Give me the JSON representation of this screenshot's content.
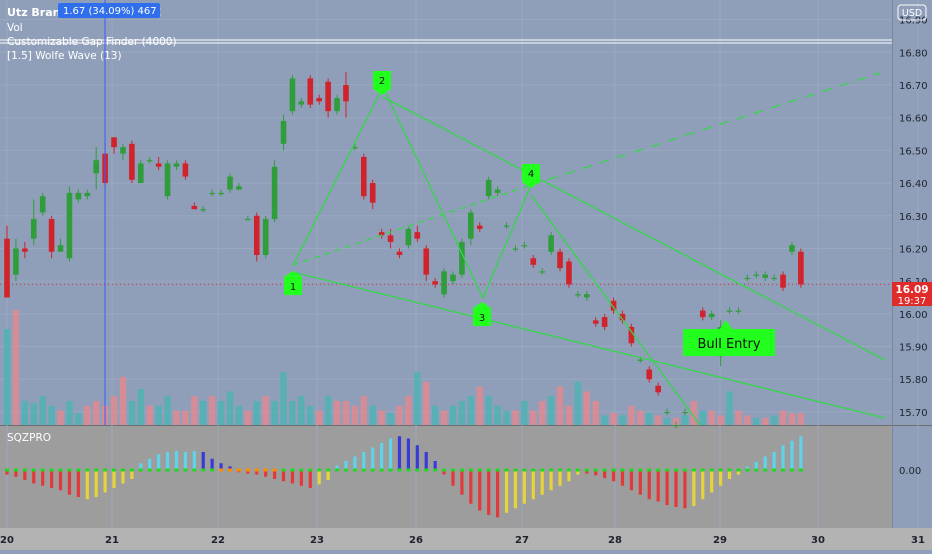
{
  "header": {
    "symbol": "Utz Brands Inc, 30, NYSE",
    "tooltip": "1.67 (34.09%) 467",
    "indicators": [
      "Vol",
      "Customizable Gap Finder (4000)",
      "[1.5] Wolfe Wave (13)"
    ]
  },
  "currency": "USD",
  "price_badge": {
    "price": "16.09",
    "timer": "19:37"
  },
  "markers": {
    "p1": "1",
    "p2": "2",
    "p3": "3",
    "p4": "4"
  },
  "entry_label": "Bull Entry",
  "sub_panel": {
    "title": "SQZPRO",
    "zero_label": "0.00"
  },
  "colors": {
    "up": "#2f9e3a",
    "down": "#d0232b",
    "vol_up": "#4fb3b3",
    "vol_down": "#e08a8f",
    "wolfe_line": "#35d64a",
    "marker": "#22ff1e",
    "badge": "#e02b2b",
    "tooltip": "#2f6fed",
    "sqz_cyan": "#5fd3e8",
    "sqz_blue": "#3a3ad6",
    "sqz_red": "#e23a3a",
    "sqz_yellow": "#e6d43a",
    "sqz_dot_green": "#21d821",
    "sqz_dot_orange": "#ff8a00"
  },
  "chart_data": {
    "type": "candlestick",
    "ylim": [
      15.66,
      16.96
    ],
    "y_ticks": [
      "16.90",
      "16.80",
      "16.70",
      "16.60",
      "16.50",
      "16.40",
      "16.30",
      "16.20",
      "16.10",
      "16.00",
      "15.90",
      "15.80",
      "15.70"
    ],
    "x_ticks": [
      "20",
      "21",
      "22",
      "23",
      "26",
      "27",
      "28",
      "29",
      "30",
      "31"
    ],
    "candles": [
      [
        16.23,
        16.05,
        16.27,
        16.05
      ],
      [
        16.12,
        16.2,
        16.23,
        16.1
      ],
      [
        16.2,
        16.19,
        16.22,
        16.17
      ],
      [
        16.23,
        16.29,
        16.35,
        16.21
      ],
      [
        16.31,
        16.36,
        16.37,
        16.3
      ],
      [
        16.29,
        16.19,
        16.3,
        16.17
      ],
      [
        16.19,
        16.21,
        16.23,
        16.19
      ],
      [
        16.17,
        16.37,
        16.39,
        16.16
      ],
      [
        16.35,
        16.37,
        16.38,
        16.34
      ],
      [
        16.36,
        16.37,
        16.38,
        16.35
      ],
      [
        16.43,
        16.47,
        16.51,
        16.38
      ],
      [
        16.49,
        16.4,
        16.52,
        16.39
      ],
      [
        16.54,
        16.51,
        16.53,
        16.49
      ],
      [
        16.49,
        16.51,
        16.52,
        16.47
      ],
      [
        16.52,
        16.41,
        16.53,
        16.4
      ],
      [
        16.4,
        16.46,
        16.47,
        16.4
      ],
      [
        16.47,
        16.47,
        16.48,
        16.46
      ],
      [
        16.46,
        16.45,
        16.48,
        16.44
      ],
      [
        16.36,
        16.46,
        16.47,
        16.35
      ],
      [
        16.45,
        16.46,
        16.47,
        16.44
      ],
      [
        16.46,
        16.42,
        16.47,
        16.41
      ],
      [
        16.33,
        16.32,
        16.34,
        16.32
      ],
      [
        16.32,
        16.32,
        16.33,
        16.31
      ],
      [
        16.37,
        16.37,
        16.38,
        16.36
      ],
      [
        16.37,
        16.37,
        16.38,
        16.36
      ],
      [
        16.38,
        16.42,
        16.43,
        16.37
      ],
      [
        16.38,
        16.39,
        16.4,
        16.38
      ],
      [
        16.29,
        16.29,
        16.3,
        16.29
      ],
      [
        16.3,
        16.18,
        16.31,
        16.16
      ],
      [
        16.18,
        16.29,
        16.3,
        16.17
      ],
      [
        16.29,
        16.45,
        16.47,
        16.28
      ],
      [
        16.52,
        16.59,
        16.61,
        16.5
      ],
      [
        16.62,
        16.72,
        16.73,
        16.61
      ],
      [
        16.64,
        16.65,
        16.66,
        16.63
      ],
      [
        16.72,
        16.64,
        16.73,
        16.63
      ],
      [
        16.66,
        16.65,
        16.67,
        16.64
      ],
      [
        16.71,
        16.62,
        16.72,
        16.6
      ],
      [
        16.62,
        16.66,
        16.67,
        16.61
      ],
      [
        16.7,
        16.65,
        16.74,
        16.6
      ],
      [
        16.51,
        16.51,
        16.52,
        16.5
      ],
      [
        16.48,
        16.36,
        16.49,
        16.35
      ],
      [
        16.4,
        16.34,
        16.41,
        16.32
      ],
      [
        16.25,
        16.24,
        16.26,
        16.23
      ],
      [
        16.24,
        16.22,
        16.26,
        16.2
      ],
      [
        16.19,
        16.18,
        16.2,
        16.17
      ],
      [
        16.21,
        16.26,
        16.27,
        16.2
      ],
      [
        16.25,
        16.23,
        16.27,
        16.22
      ],
      [
        16.2,
        16.12,
        16.21,
        16.1
      ],
      [
        16.1,
        16.09,
        16.11,
        16.08
      ],
      [
        16.06,
        16.13,
        16.14,
        16.05
      ],
      [
        16.1,
        16.12,
        16.13,
        16.09
      ],
      [
        16.12,
        16.22,
        16.23,
        16.11
      ],
      [
        16.23,
        16.31,
        16.32,
        16.21
      ],
      [
        16.27,
        16.26,
        16.28,
        16.25
      ],
      [
        16.36,
        16.41,
        16.42,
        16.35
      ],
      [
        16.37,
        16.38,
        16.39,
        16.36
      ],
      [
        16.27,
        16.27,
        16.28,
        16.26
      ],
      [
        16.2,
        16.2,
        16.21,
        16.19
      ],
      [
        16.21,
        16.21,
        16.22,
        16.2
      ],
      [
        16.17,
        16.15,
        16.18,
        16.14
      ],
      [
        16.13,
        16.13,
        16.14,
        16.12
      ],
      [
        16.19,
        16.24,
        16.25,
        16.18
      ],
      [
        16.19,
        16.14,
        16.2,
        16.13
      ],
      [
        16.16,
        16.09,
        16.17,
        16.08
      ],
      [
        16.06,
        16.06,
        16.07,
        16.05
      ],
      [
        16.05,
        16.06,
        16.07,
        16.04
      ],
      [
        15.98,
        15.97,
        15.99,
        15.96
      ],
      [
        15.99,
        15.96,
        16.0,
        15.95
      ],
      [
        16.04,
        16.01,
        16.05,
        16.0
      ],
      [
        16.0,
        15.98,
        16.01,
        15.97
      ],
      [
        15.96,
        15.91,
        15.97,
        15.9
      ],
      [
        15.86,
        15.86,
        15.87,
        15.85
      ],
      [
        15.83,
        15.8,
        15.84,
        15.79
      ],
      [
        15.78,
        15.76,
        15.79,
        15.75
      ],
      [
        15.7,
        15.7,
        15.71,
        15.69
      ],
      [
        15.66,
        15.66,
        15.67,
        15.65
      ],
      [
        15.7,
        15.7,
        15.71,
        15.69
      ],
      [
        15.92,
        15.92,
        15.93,
        15.91
      ],
      [
        16.01,
        15.99,
        16.02,
        15.98
      ],
      [
        15.99,
        16.0,
        16.01,
        15.98
      ],
      [
        15.87,
        15.96,
        15.98,
        15.84
      ],
      [
        16.01,
        16.01,
        16.02,
        16.0
      ],
      [
        16.01,
        16.01,
        16.02,
        16.0
      ],
      [
        16.11,
        16.11,
        16.12,
        16.1
      ],
      [
        16.12,
        16.12,
        16.13,
        16.11
      ],
      [
        16.11,
        16.12,
        16.13,
        16.1
      ],
      [
        16.11,
        16.11,
        16.12,
        16.1
      ],
      [
        16.12,
        16.08,
        16.13,
        16.07
      ],
      [
        16.19,
        16.21,
        16.22,
        16.18
      ],
      [
        16.19,
        16.09,
        16.2,
        16.08
      ]
    ],
    "volume": [
      [
        0.4,
        1
      ],
      [
        0.48,
        0
      ],
      [
        0.1,
        1
      ],
      [
        0.09,
        1
      ],
      [
        0.12,
        1
      ],
      [
        0.08,
        1
      ],
      [
        0.06,
        0
      ],
      [
        0.1,
        1
      ],
      [
        0.05,
        1
      ],
      [
        0.08,
        0
      ],
      [
        0.1,
        0
      ],
      [
        0.08,
        0
      ],
      [
        0.12,
        0
      ],
      [
        0.2,
        0
      ],
      [
        0.1,
        1
      ],
      [
        0.15,
        1
      ],
      [
        0.08,
        0
      ],
      [
        0.08,
        1
      ],
      [
        0.12,
        1
      ],
      [
        0.06,
        0
      ],
      [
        0.06,
        0
      ],
      [
        0.12,
        0
      ],
      [
        0.1,
        1
      ],
      [
        0.12,
        0
      ],
      [
        0.1,
        1
      ],
      [
        0.14,
        1
      ],
      [
        0.08,
        1
      ],
      [
        0.06,
        0
      ],
      [
        0.1,
        1
      ],
      [
        0.12,
        0
      ],
      [
        0.1,
        1
      ],
      [
        0.22,
        1
      ],
      [
        0.1,
        1
      ],
      [
        0.12,
        1
      ],
      [
        0.08,
        1
      ],
      [
        0.06,
        0
      ],
      [
        0.12,
        1
      ],
      [
        0.1,
        0
      ],
      [
        0.1,
        0
      ],
      [
        0.08,
        0
      ],
      [
        0.12,
        0
      ],
      [
        0.08,
        1
      ],
      [
        0.06,
        0
      ],
      [
        0.05,
        1
      ],
      [
        0.08,
        0
      ],
      [
        0.12,
        0
      ],
      [
        0.22,
        1
      ],
      [
        0.18,
        0
      ],
      [
        0.08,
        1
      ],
      [
        0.06,
        0
      ],
      [
        0.08,
        1
      ],
      [
        0.1,
        1
      ],
      [
        0.12,
        1
      ],
      [
        0.16,
        0
      ],
      [
        0.12,
        1
      ],
      [
        0.08,
        1
      ],
      [
        0.06,
        1
      ],
      [
        0.06,
        0
      ],
      [
        0.1,
        1
      ],
      [
        0.06,
        0
      ],
      [
        0.1,
        0
      ],
      [
        0.12,
        1
      ],
      [
        0.16,
        0
      ],
      [
        0.08,
        0
      ],
      [
        0.18,
        1
      ],
      [
        0.14,
        0
      ],
      [
        0.1,
        0
      ],
      [
        0.04,
        1
      ],
      [
        0.05,
        0
      ],
      [
        0.04,
        1
      ],
      [
        0.08,
        0
      ],
      [
        0.06,
        0
      ],
      [
        0.05,
        1
      ],
      [
        0.04,
        0
      ],
      [
        0.03,
        1
      ],
      [
        0.03,
        0
      ],
      [
        0.04,
        1
      ],
      [
        0.1,
        0
      ],
      [
        0.06,
        1
      ],
      [
        0.06,
        0
      ],
      [
        0.04,
        0
      ],
      [
        0.14,
        1
      ],
      [
        0.06,
        0
      ],
      [
        0.04,
        0
      ],
      [
        0.03,
        1
      ],
      [
        0.03,
        0
      ],
      [
        0.04,
        1
      ],
      [
        0.06,
        0
      ],
      [
        0.05,
        0
      ],
      [
        0.05,
        0
      ]
    ],
    "sqz": [
      [
        -0.1,
        "red"
      ],
      [
        -0.15,
        "red"
      ],
      [
        -0.22,
        "red"
      ],
      [
        -0.3,
        "red"
      ],
      [
        -0.35,
        "red"
      ],
      [
        -0.4,
        "red"
      ],
      [
        -0.45,
        "red"
      ],
      [
        -0.55,
        "red"
      ],
      [
        -0.6,
        "red"
      ],
      [
        -0.65,
        "yellow"
      ],
      [
        -0.6,
        "yellow"
      ],
      [
        -0.5,
        "yellow"
      ],
      [
        -0.4,
        "yellow"
      ],
      [
        -0.3,
        "yellow"
      ],
      [
        -0.2,
        "yellow"
      ],
      [
        0.15,
        "cyan"
      ],
      [
        0.25,
        "cyan"
      ],
      [
        0.35,
        "cyan"
      ],
      [
        0.4,
        "cyan"
      ],
      [
        0.42,
        "cyan"
      ],
      [
        0.4,
        "cyan"
      ],
      [
        0.42,
        "cyan"
      ],
      [
        0.4,
        "blue"
      ],
      [
        0.25,
        "blue"
      ],
      [
        0.15,
        "blue"
      ],
      [
        0.08,
        "blue"
      ],
      [
        -0.05,
        "red"
      ],
      [
        -0.08,
        "red"
      ],
      [
        -0.1,
        "red"
      ],
      [
        -0.15,
        "red"
      ],
      [
        -0.2,
        "red"
      ],
      [
        -0.25,
        "red"
      ],
      [
        -0.3,
        "red"
      ],
      [
        -0.35,
        "red"
      ],
      [
        -0.4,
        "red"
      ],
      [
        -0.32,
        "yellow"
      ],
      [
        -0.22,
        "yellow"
      ],
      [
        0.1,
        "cyan"
      ],
      [
        0.2,
        "cyan"
      ],
      [
        0.3,
        "cyan"
      ],
      [
        0.4,
        "cyan"
      ],
      [
        0.5,
        "cyan"
      ],
      [
        0.6,
        "cyan"
      ],
      [
        0.7,
        "cyan"
      ],
      [
        0.75,
        "blue"
      ],
      [
        0.7,
        "blue"
      ],
      [
        0.55,
        "blue"
      ],
      [
        0.4,
        "blue"
      ],
      [
        0.2,
        "blue"
      ],
      [
        -0.1,
        "red"
      ],
      [
        -0.35,
        "red"
      ],
      [
        -0.55,
        "red"
      ],
      [
        -0.75,
        "red"
      ],
      [
        -0.9,
        "red"
      ],
      [
        -1.0,
        "red"
      ],
      [
        -1.05,
        "red"
      ],
      [
        -0.95,
        "yellow"
      ],
      [
        -0.85,
        "yellow"
      ],
      [
        -0.75,
        "yellow"
      ],
      [
        -0.65,
        "yellow"
      ],
      [
        -0.55,
        "yellow"
      ],
      [
        -0.45,
        "yellow"
      ],
      [
        -0.35,
        "yellow"
      ],
      [
        -0.25,
        "yellow"
      ],
      [
        -0.1,
        "yellow"
      ],
      [
        -0.08,
        "red"
      ],
      [
        -0.12,
        "red"
      ],
      [
        -0.18,
        "red"
      ],
      [
        -0.25,
        "red"
      ],
      [
        -0.35,
        "red"
      ],
      [
        -0.45,
        "red"
      ],
      [
        -0.55,
        "red"
      ],
      [
        -0.65,
        "red"
      ],
      [
        -0.7,
        "red"
      ],
      [
        -0.78,
        "red"
      ],
      [
        -0.82,
        "red"
      ],
      [
        -0.85,
        "red"
      ],
      [
        -0.8,
        "yellow"
      ],
      [
        -0.65,
        "yellow"
      ],
      [
        -0.5,
        "yellow"
      ],
      [
        -0.35,
        "yellow"
      ],
      [
        -0.2,
        "yellow"
      ],
      [
        -0.1,
        "yellow"
      ],
      [
        0.08,
        "cyan"
      ],
      [
        0.18,
        "cyan"
      ],
      [
        0.3,
        "cyan"
      ],
      [
        0.4,
        "cyan"
      ],
      [
        0.55,
        "cyan"
      ],
      [
        0.65,
        "cyan"
      ],
      [
        0.75,
        "cyan"
      ]
    ]
  }
}
